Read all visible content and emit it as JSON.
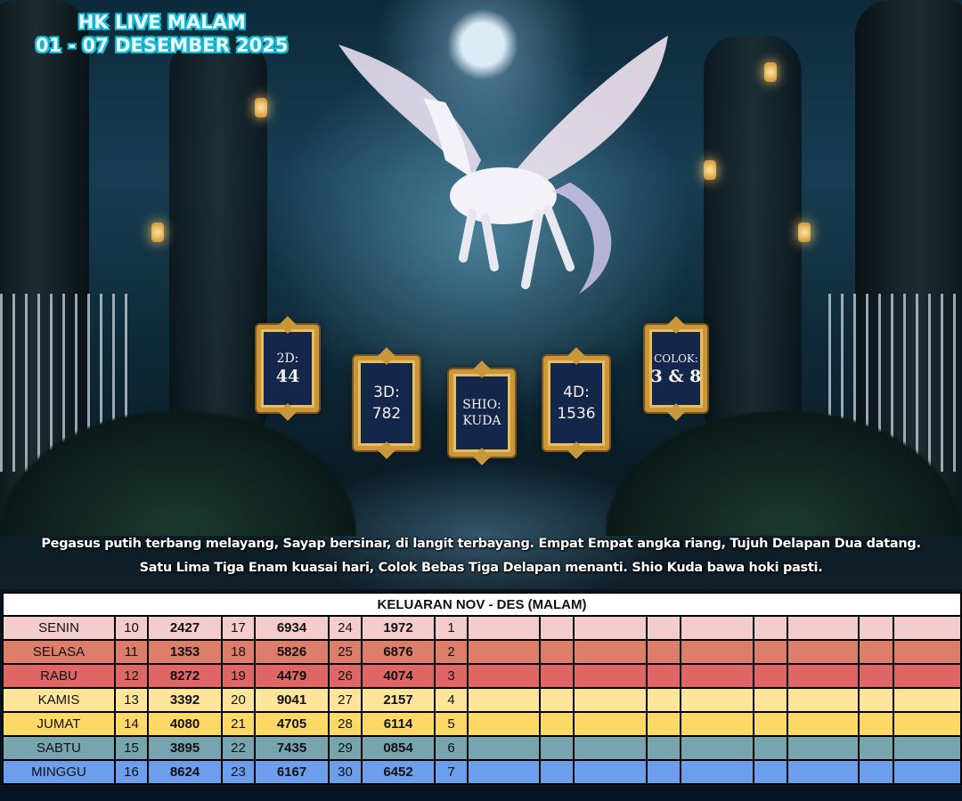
{
  "title": {
    "line1": "HK LIVE MALAM",
    "line2": "01 - 07 DESEMBER 2025"
  },
  "prediction": [
    {
      "label": "2D:",
      "value": "44"
    },
    {
      "label": "3D:",
      "value": "782"
    },
    {
      "label": "SHIO:",
      "value": "KUDA"
    },
    {
      "label": "4D:",
      "value": "1536"
    },
    {
      "label": "COLOK:",
      "value": "3 & 8"
    }
  ],
  "caption": {
    "line1": "Pegasus putih terbang melayang, Sayap bersinar, di langit terbayang. Empat Empat angka riang, Tujuh Delapan Dua datang.",
    "line2": "Satu Lima Tiga Enam kuasai hari, Colok Bebas Tiga Delapan menanti. Shio Kuda bawa hoki pasti."
  },
  "table": {
    "header": "KELUARAN NOV - DES (MALAM)",
    "rows": [
      {
        "day": "SENIN",
        "color": "#f4cccc",
        "cells": [
          "10",
          "2427",
          "17",
          "6934",
          "24",
          "1972",
          "1"
        ]
      },
      {
        "day": "SELASA",
        "color": "#dd7e6b",
        "cells": [
          "11",
          "1353",
          "18",
          "5826",
          "25",
          "6876",
          "2"
        ]
      },
      {
        "day": "RABU",
        "color": "#e06666",
        "cells": [
          "12",
          "8272",
          "19",
          "4479",
          "26",
          "4074",
          "3"
        ]
      },
      {
        "day": "KAMIS",
        "color": "#ffe599",
        "cells": [
          "13",
          "3392",
          "20",
          "9041",
          "27",
          "2157",
          "4"
        ]
      },
      {
        "day": "JUMAT",
        "color": "#ffd966",
        "cells": [
          "14",
          "4080",
          "21",
          "4705",
          "28",
          "6114",
          "5"
        ]
      },
      {
        "day": "SABTU",
        "color": "#76a5af",
        "cells": [
          "15",
          "3895",
          "22",
          "7435",
          "29",
          "0854",
          "6"
        ]
      },
      {
        "day": "MINGGU",
        "color": "#6d9eeb",
        "cells": [
          "16",
          "8624",
          "23",
          "6167",
          "30",
          "6452",
          "7"
        ]
      }
    ]
  }
}
